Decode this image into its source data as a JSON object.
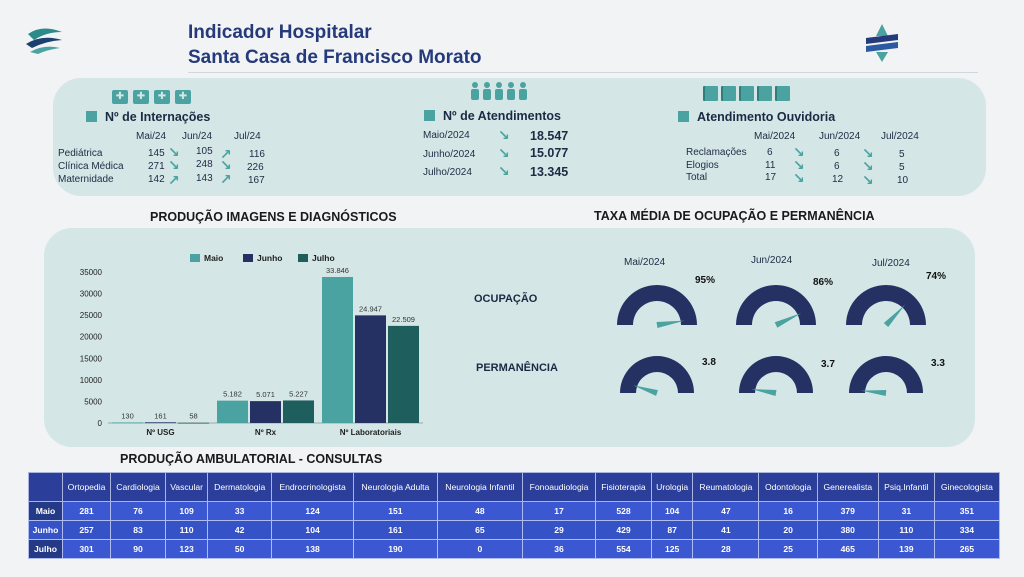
{
  "header": {
    "title_line1": "Indicador Hospitalar",
    "title_line2": "Santa Casa de Francisco Morato",
    "left_logo": "wave-logo",
    "right_logo": "cross-logo"
  },
  "internacoes": {
    "title": "Nº de Internações",
    "icon": "medical-case-icon",
    "months": [
      "Mai/24",
      "Jun/24",
      "Jul/24"
    ],
    "rows": [
      {
        "label": "Pediátrica",
        "values": [
          "145",
          "105",
          "116"
        ]
      },
      {
        "label": "Clínica Médica",
        "values": [
          "271",
          "248",
          "226"
        ]
      },
      {
        "label": "Maternidade",
        "values": [
          "142",
          "143",
          "167"
        ]
      }
    ]
  },
  "atendimentos": {
    "title": "Nº de Atendimentos",
    "icon": "people-icon",
    "rows": [
      {
        "label": "Maio/2024",
        "value": "18.547"
      },
      {
        "label": "Junho/2024",
        "value": "15.077"
      },
      {
        "label": "Julho/2024",
        "value": "13.345"
      }
    ]
  },
  "ouvidoria": {
    "title": "Atendimento Ouvidoria",
    "icon": "book-icon",
    "months": [
      "Mai/2024",
      "Jun/2024",
      "Jul/2024"
    ],
    "rows": [
      {
        "label": "Reclamações",
        "values": [
          "6",
          "6",
          "5"
        ]
      },
      {
        "label": "Elogios",
        "values": [
          "11",
          "6",
          "5"
        ]
      },
      {
        "label": "Total",
        "values": [
          "17",
          "12",
          "10"
        ]
      }
    ]
  },
  "imagens": {
    "title": "PRODUÇÃO IMAGENS E DIAGNÓSTICOS"
  },
  "chart_data": {
    "type": "bar",
    "categories": [
      "Nº USG",
      "Nº Rx",
      "Nº Laboratoriais"
    ],
    "series": [
      {
        "name": "Maio",
        "values": [
          130,
          5182,
          33846
        ],
        "labels": [
          "130",
          "5.182",
          "33.846"
        ],
        "color": "#4aa3a0"
      },
      {
        "name": "Junho",
        "values": [
          161,
          5071,
          24947
        ],
        "labels": [
          "161",
          "5.071",
          "24.947"
        ],
        "color": "#253163"
      },
      {
        "name": "Julho",
        "values": [
          58,
          5227,
          22509
        ],
        "labels": [
          "58",
          "5.227",
          "22.509"
        ],
        "color": "#1e5e5c"
      }
    ],
    "yticks": [
      "35000",
      "30000",
      "25000",
      "20000",
      "15000",
      "10000",
      "5000",
      "0"
    ],
    "ylim": [
      0,
      35000
    ],
    "legend": "top"
  },
  "ocupacao": {
    "title": "TAXA MÉDIA DE OCUPAÇÃO E PERMANÊNCIA",
    "months": [
      "Mai/2024",
      "Jun/2024",
      "Jul/2024"
    ],
    "row1_label": "OCUPAÇÃO",
    "row2_label": "PERMANÊNCIA",
    "ocupacao_values": [
      "95%",
      "86%",
      "74%"
    ],
    "ocupacao_levels": [
      0.95,
      0.86,
      0.74
    ],
    "permanencia_values": [
      "3.8",
      "3.7",
      "3.3"
    ],
    "permanencia_levels": [
      0.1,
      0.05,
      0.03
    ],
    "gauge_color": "#253163",
    "needle_color": "#4aa3a0"
  },
  "ambulatorial": {
    "title": "PRODUÇÃO AMBULATORIAL - CONSULTAS",
    "columns": [
      "Ortopedia",
      "Cardiologia",
      "Vascular",
      "Dermatologia",
      "Endrocrinologista",
      "Neurologia Adulta",
      "Neurologia Infantil",
      "Fonoaudiologia",
      "Fisioterapia",
      "Urologia",
      "Reumatologia",
      "Odontologia",
      "Generealista",
      "Psiq.Infantil",
      "Ginecologista"
    ],
    "rows": [
      {
        "label": "Maio",
        "values": [
          "281",
          "76",
          "109",
          "33",
          "124",
          "151",
          "48",
          "17",
          "528",
          "104",
          "47",
          "16",
          "379",
          "31",
          "351"
        ]
      },
      {
        "label": "Junho",
        "values": [
          "257",
          "83",
          "110",
          "42",
          "104",
          "161",
          "65",
          "29",
          "429",
          "87",
          "41",
          "20",
          "380",
          "110",
          "334"
        ]
      },
      {
        "label": "Julho",
        "values": [
          "301",
          "90",
          "123",
          "50",
          "138",
          "190",
          "0",
          "36",
          "554",
          "125",
          "28",
          "25",
          "465",
          "139",
          "265"
        ]
      }
    ]
  }
}
